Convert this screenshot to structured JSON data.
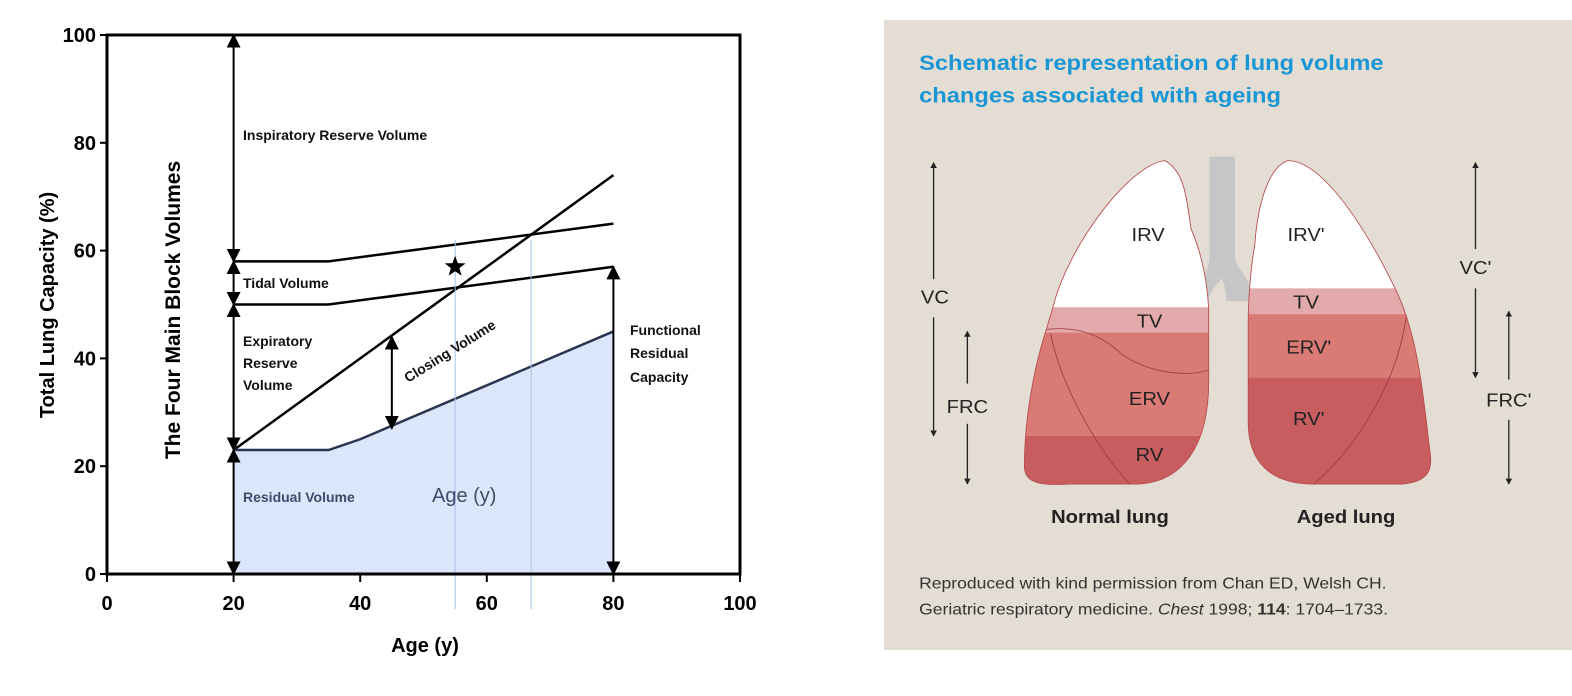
{
  "chart_data": {
    "type": "line",
    "title": "",
    "xlabel": "Age (y)",
    "ylabel": "Total Lung Capacity (%)",
    "xlim": [
      0,
      100
    ],
    "ylim": [
      0,
      100
    ],
    "xticks": [
      "0",
      "20",
      "40",
      "60",
      "80",
      "100"
    ],
    "yticks": [
      "0",
      "20",
      "40",
      "60",
      "80",
      "100"
    ],
    "series": [
      {
        "name": "IRV lower boundary",
        "x": [
          20,
          35,
          80
        ],
        "y": [
          58,
          58,
          65
        ]
      },
      {
        "name": "Tidal volume lower boundary (FRC)",
        "x": [
          20,
          35,
          80
        ],
        "y": [
          50,
          50,
          57
        ]
      },
      {
        "name": "Closing volume line",
        "x": [
          20,
          80
        ],
        "y": [
          23,
          74
        ]
      },
      {
        "name": "Residual volume",
        "x": [
          20,
          35,
          40,
          80
        ],
        "y": [
          23,
          23,
          25,
          45
        ],
        "fill": "#dce6fb"
      }
    ],
    "reference_x": [
      55,
      67
    ],
    "star": {
      "x": 55,
      "y": 57
    },
    "annotations": {
      "side_label": "The Four Main Block Volumes",
      "irv": "Inspiratory Reserve Volume",
      "tv": "Tidal Volume",
      "erv": [
        "Expiratory",
        "Reserve",
        "Volume"
      ],
      "closing": "Closing Volume",
      "frc": [
        "Functional",
        "Residual",
        "Capacity"
      ],
      "rv": "Residual Volume",
      "inner_age": "Age (y)"
    }
  },
  "schematic": {
    "title_lines": [
      "Schematic representation of lung volume",
      "changes associated with ageing"
    ],
    "normal": {
      "label": "Normal lung",
      "irv": "IRV",
      "tv": "TV",
      "erv": "ERV",
      "rv": "RV",
      "vc": "VC",
      "frc": "FRC"
    },
    "aged": {
      "label": "Aged lung",
      "irv": "IRV'",
      "tv": "TV",
      "erv": "ERV'",
      "rv": "RV'",
      "vc": "VC'",
      "frc": "FRC'"
    },
    "caption_line1": "Reproduced with kind permission from Chan ED, Welsh CH.",
    "caption_line2_a": "Geriatric respiratory medicine. ",
    "caption_line2_journal": "Chest",
    "caption_line2_b": " 1998; ",
    "caption_line2_volume": "114",
    "caption_line2_c": ": 1704–1733.",
    "colors": {
      "background": "#e3ddd3",
      "title": "#1a96d4",
      "tv": "#e2aaab",
      "erv": "#d97b74",
      "rv": "#c85d60",
      "trachea": "#c6c6c6",
      "outline": "#b84a4e"
    }
  }
}
